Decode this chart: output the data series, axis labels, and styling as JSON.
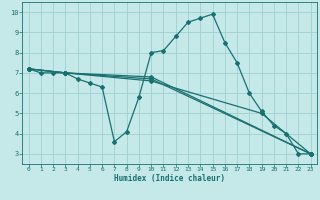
{
  "xlabel": "Humidex (Indice chaleur)",
  "bg_color": "#c5e8e8",
  "grid_color": "#9fcfcf",
  "line_color": "#1a7070",
  "xlim": [
    -0.5,
    23.5
  ],
  "ylim": [
    2.5,
    10.5
  ],
  "xticks": [
    0,
    1,
    2,
    3,
    4,
    5,
    6,
    7,
    8,
    9,
    10,
    11,
    12,
    13,
    14,
    15,
    16,
    17,
    18,
    19,
    20,
    21,
    22,
    23
  ],
  "yticks": [
    3,
    4,
    5,
    6,
    7,
    8,
    9,
    10
  ],
  "series": [
    {
      "x": [
        0,
        1,
        2,
        3,
        4,
        5,
        6,
        7,
        8,
        9,
        10,
        11,
        12,
        13,
        14,
        15,
        16,
        17,
        18,
        19,
        20,
        21,
        22,
        23
      ],
      "y": [
        7.2,
        7.0,
        7.0,
        7.0,
        6.7,
        6.5,
        6.3,
        3.6,
        4.1,
        5.8,
        8.0,
        8.1,
        8.8,
        9.5,
        9.7,
        9.9,
        8.5,
        7.5,
        6.0,
        5.1,
        4.4,
        4.0,
        3.0,
        3.0
      ]
    },
    {
      "x": [
        0,
        3,
        10,
        23
      ],
      "y": [
        7.2,
        7.0,
        6.8,
        3.0
      ]
    },
    {
      "x": [
        0,
        3,
        10,
        23
      ],
      "y": [
        7.2,
        7.0,
        6.7,
        3.0
      ]
    },
    {
      "x": [
        0,
        3,
        10,
        19,
        23
      ],
      "y": [
        7.2,
        7.0,
        6.6,
        5.0,
        3.0
      ]
    }
  ]
}
